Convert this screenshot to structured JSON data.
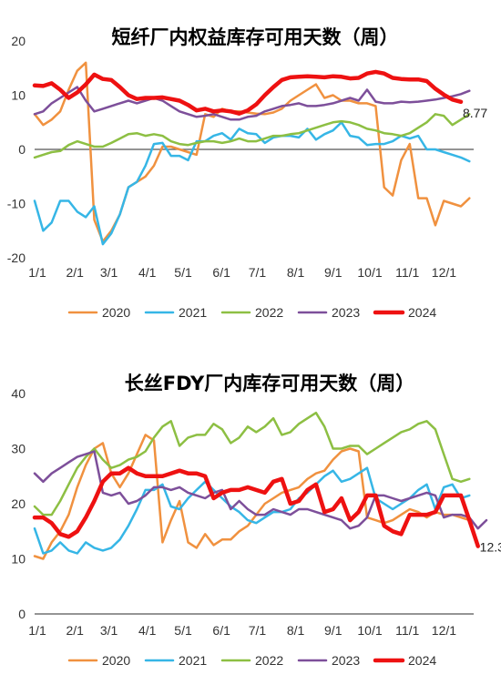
{
  "chart_data": [
    {
      "type": "line",
      "title": "短纤厂内权益库存可用天数（周）",
      "xlabel": "",
      "ylabel": "",
      "ylim": [
        -20,
        20
      ],
      "yticks": [
        -20,
        -10,
        0,
        10,
        20
      ],
      "x_ticks": [
        {
          "label": "1/1",
          "week": 0
        },
        {
          "label": "2/1",
          "week": 4.4
        },
        {
          "label": "3/1",
          "week": 8.4
        },
        {
          "label": "4/1",
          "week": 12.9
        },
        {
          "label": "5/1",
          "week": 17.1
        },
        {
          "label": "6/1",
          "week": 21.6
        },
        {
          "label": "7/1",
          "week": 25.8
        },
        {
          "label": "8/1",
          "week": 30.3
        },
        {
          "label": "9/1",
          "week": 34.7
        },
        {
          "label": "10/1",
          "week": 39
        },
        {
          "label": "11/1",
          "week": 43.4
        },
        {
          "label": "12/1",
          "week": 47.7
        }
      ],
      "legend_position": "bottom",
      "end_label": "8.77",
      "series": [
        {
          "name": "2020",
          "color": "#f0913f",
          "width": 2.5,
          "values": [
            6.5,
            4.5,
            5.5,
            7,
            11,
            14.5,
            16,
            -13,
            -17,
            -15,
            -12,
            -7,
            -6,
            -5,
            -3,
            0.5,
            0.5,
            0,
            -0.5,
            -1,
            6.5,
            6,
            7.5,
            7,
            7,
            6.8,
            6.6,
            6.5,
            6.8,
            7.5,
            9,
            10,
            11,
            12,
            9.5,
            10,
            9,
            9,
            8.5,
            8.5,
            8,
            -7,
            -8.5,
            -2,
            1,
            -9,
            -9,
            -14,
            -9.5,
            -10,
            -10.5,
            -9
          ]
        },
        {
          "name": "2021",
          "color": "#36b6e6",
          "width": 2.5,
          "values": [
            -9.5,
            -15,
            -13.5,
            -9.5,
            -9.5,
            -11.5,
            -12.5,
            -10.5,
            -17.5,
            -15.5,
            -12,
            -7,
            -6,
            -3,
            1,
            1.2,
            -1.2,
            -1.2,
            -2,
            1.5,
            1.5,
            2.5,
            3,
            1.8,
            3.8,
            3,
            2.8,
            1.2,
            2.2,
            2.5,
            2.5,
            2.2,
            3.8,
            1.8,
            2.8,
            3.5,
            5,
            2.5,
            2.2,
            0.8,
            1,
            1,
            1.5,
            2.5,
            2,
            2.5,
            0,
            0,
            -0.5,
            -1,
            -1.5,
            -2.2
          ]
        },
        {
          "name": "2022",
          "color": "#8dbf43",
          "width": 2.5,
          "values": [
            -1.5,
            -1,
            -0.5,
            -0.3,
            0.8,
            1.5,
            1,
            0.5,
            0.5,
            1.2,
            2,
            2.8,
            3,
            2.5,
            2.8,
            2.5,
            1.5,
            1,
            0.8,
            1.2,
            1.5,
            1.5,
            1.2,
            1.5,
            2,
            1.5,
            1.5,
            2,
            2.5,
            2.5,
            2.8,
            3,
            3.5,
            4,
            4.5,
            5,
            5.2,
            5,
            4.5,
            3.8,
            3.5,
            3,
            2.8,
            2.5,
            3,
            4,
            5,
            6.5,
            6.2,
            4.5,
            5.5,
            6.5
          ]
        },
        {
          "name": "2023",
          "color": "#7d4f9a",
          "width": 2.5,
          "values": [
            6.5,
            7,
            8.5,
            9.5,
            10.5,
            11.5,
            9,
            7,
            7.5,
            8,
            8.5,
            9,
            8.5,
            9,
            9.5,
            9,
            8,
            7,
            6.5,
            6,
            6.2,
            6.5,
            6,
            5.5,
            5.5,
            6,
            6.2,
            7,
            7.5,
            8,
            8.2,
            8.5,
            8,
            8,
            8.2,
            8.5,
            9,
            9.5,
            9,
            11,
            8.8,
            8.5,
            8.5,
            8.8,
            8.7,
            8.8,
            9,
            9.2,
            9.5,
            9.8,
            10.2,
            10.8
          ]
        },
        {
          "name": "2024",
          "color": "#ee1111",
          "width": 4.5,
          "values": [
            11.8,
            11.7,
            12.2,
            11,
            9.5,
            10.5,
            12,
            13.8,
            13,
            12.8,
            11.5,
            10,
            9.3,
            9.5,
            9.5,
            9.6,
            9.3,
            9,
            8.2,
            7.2,
            7.5,
            7,
            7.2,
            7,
            6.6,
            7.2,
            8.3,
            10,
            11.5,
            12.8,
            13.3,
            13.4,
            13.5,
            13.4,
            13.3,
            13.5,
            13.4,
            13.1,
            13.2,
            14,
            14.3,
            14,
            13.2,
            13.0,
            12.9,
            12.9,
            12.6,
            11.2,
            10.1,
            9.2,
            8.77
          ]
        }
      ]
    },
    {
      "type": "line",
      "title": "长丝FDY厂内库存可用天数（周）",
      "xlabel": "",
      "ylabel": "",
      "ylim": [
        0,
        40
      ],
      "yticks": [
        0,
        10,
        20,
        30,
        40
      ],
      "x_ticks": [
        {
          "label": "1/1",
          "week": 0
        },
        {
          "label": "2/1",
          "week": 4.4
        },
        {
          "label": "3/1",
          "week": 8.4
        },
        {
          "label": "4/1",
          "week": 12.9
        },
        {
          "label": "5/1",
          "week": 17.1
        },
        {
          "label": "6/1",
          "week": 21.6
        },
        {
          "label": "7/1",
          "week": 25.8
        },
        {
          "label": "8/1",
          "week": 30.3
        },
        {
          "label": "9/1",
          "week": 34.7
        },
        {
          "label": "10/1",
          "week": 39
        },
        {
          "label": "11/1",
          "week": 43.4
        },
        {
          "label": "12/1",
          "week": 47.7
        }
      ],
      "legend_position": "bottom",
      "end_label": "12.3",
      "series": [
        {
          "name": "2020",
          "color": "#f0913f",
          "width": 2.5,
          "values": [
            10.5,
            10,
            13,
            15,
            18,
            23,
            27,
            30,
            31,
            25.5,
            23,
            25.5,
            29,
            32.5,
            31.5,
            13,
            17,
            20.5,
            13,
            12,
            14.5,
            12.5,
            13.5,
            13.5,
            15,
            16,
            18,
            20,
            21,
            22,
            22.5,
            23,
            24.5,
            25.5,
            26,
            28,
            29.5,
            30,
            29.5,
            17.5,
            17,
            16.5,
            17,
            18,
            19,
            18.5,
            17.5,
            18.5,
            18,
            18,
            17.5,
            17
          ]
        },
        {
          "name": "2021",
          "color": "#36b6e6",
          "width": 2.5,
          "values": [
            15.5,
            11,
            11.5,
            13,
            11.5,
            11,
            13,
            12,
            11.5,
            12,
            13.5,
            16,
            19,
            22.5,
            22.5,
            23.5,
            19.5,
            19,
            21,
            22.5,
            24,
            22.5,
            21,
            19.5,
            18.5,
            17,
            16.5,
            17.5,
            18.5,
            18.5,
            19,
            21,
            22,
            23.5,
            25,
            26,
            24,
            24.5,
            25.5,
            26.5,
            21,
            20,
            19,
            20,
            21,
            22.5,
            23.5,
            19,
            23,
            23.5,
            21,
            21.5
          ]
        },
        {
          "name": "2022",
          "color": "#8dbf43",
          "width": 2.5,
          "values": [
            19.5,
            18,
            18,
            20.5,
            23.5,
            26.5,
            28.5,
            30,
            28,
            26.5,
            27,
            28,
            28.5,
            29.5,
            32,
            34,
            35,
            30.5,
            32,
            32.5,
            32.5,
            34.5,
            33.5,
            31,
            32,
            34,
            33,
            34,
            35.5,
            32.5,
            33,
            34.5,
            35.5,
            36.5,
            34,
            30,
            30,
            30.5,
            30.5,
            29,
            30,
            31,
            32,
            33,
            33.5,
            34.5,
            35,
            33.5,
            29,
            24.5,
            24,
            24.5
          ]
        },
        {
          "name": "2023",
          "color": "#7d4f9a",
          "width": 2.5,
          "values": [
            25.5,
            24,
            25.5,
            26.5,
            27.5,
            28.5,
            29,
            29.5,
            22,
            21.5,
            22,
            20,
            20.5,
            21.5,
            23,
            23,
            22.5,
            23,
            22,
            21.5,
            21,
            22,
            22.5,
            19,
            20.5,
            19,
            18,
            18,
            19,
            18.5,
            18,
            19,
            19,
            18.5,
            18,
            17.5,
            17,
            15.5,
            16,
            17.5,
            21.5,
            21.5,
            21,
            20.5,
            21,
            21.5,
            22,
            21.5,
            17.5,
            18,
            18,
            17.5,
            15.5,
            17
          ]
        },
        {
          "name": "2024",
          "color": "#ee1111",
          "width": 4.5,
          "values": [
            17.5,
            17.5,
            16.5,
            14.5,
            14,
            15,
            17.5,
            20.5,
            24,
            25.5,
            25.5,
            26.5,
            25.5,
            25,
            25,
            25,
            25.5,
            26,
            25.5,
            25.5,
            25,
            21,
            22,
            22.5,
            22.5,
            23,
            22.5,
            22,
            24,
            24.5,
            20,
            20.5,
            22.5,
            23.5,
            18.5,
            19,
            21,
            17,
            18.5,
            21.5,
            21.5,
            16,
            15,
            14.5,
            18,
            18,
            18,
            18.5,
            21.5,
            21.5,
            21.5,
            17,
            12.3
          ]
        }
      ]
    }
  ]
}
